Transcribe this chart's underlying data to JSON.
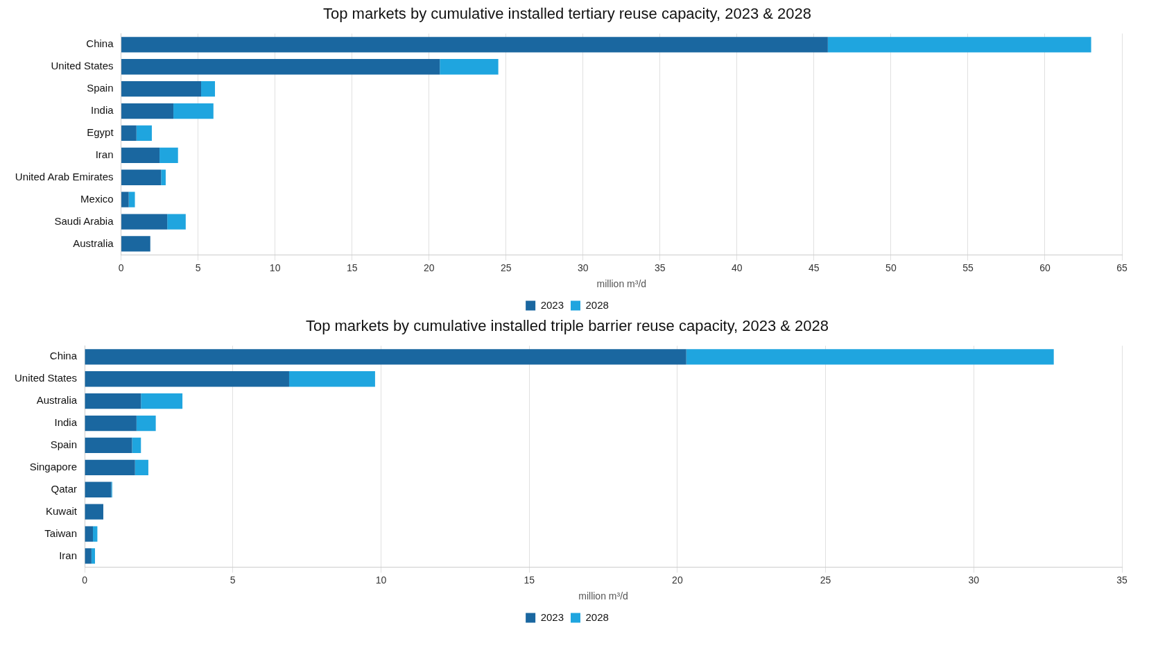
{
  "chart_data": [
    {
      "type": "bar",
      "orientation": "horizontal",
      "stacked": true,
      "title": "Top markets by cumulative installed tertiary reuse capacity, 2023 & 2028",
      "xlabel": "million m³/d",
      "categories": [
        "China",
        "United States",
        "Spain",
        "India",
        "Egypt",
        "Iran",
        "United Arab Emirates",
        "Mexico",
        "Saudi Arabia",
        "Australia"
      ],
      "series": [
        {
          "name": "2023",
          "color": "#1a67a0",
          "values": [
            45.9,
            20.7,
            5.2,
            3.4,
            1.0,
            2.5,
            2.6,
            0.5,
            3.0,
            1.9
          ]
        },
        {
          "name": "2028",
          "color": "#1fa5df",
          "values": [
            17.1,
            3.8,
            0.9,
            2.6,
            1.0,
            1.2,
            0.3,
            0.4,
            1.2,
            0
          ]
        }
      ],
      "xlim": [
        0,
        65
      ],
      "xticks": [
        0,
        5,
        10,
        15,
        20,
        25,
        30,
        35,
        40,
        45,
        50,
        55,
        60,
        65
      ],
      "grid": "x",
      "legend": "bottom"
    },
    {
      "type": "bar",
      "orientation": "horizontal",
      "stacked": true,
      "title": "Top markets by cumulative installed triple barrier reuse capacity, 2023 & 2028",
      "xlabel": "million m³/d",
      "categories": [
        "China",
        "United States",
        "Australia",
        "India",
        "Spain",
        "Singapore",
        "Qatar",
        "Kuwait",
        "Taiwan",
        "Iran"
      ],
      "series": [
        {
          "name": "2023",
          "color": "#1a67a0",
          "values": [
            20.3,
            6.9,
            1.9,
            1.75,
            1.6,
            1.7,
            0.9,
            0.63,
            0.28,
            0.23
          ]
        },
        {
          "name": "2028",
          "color": "#1fa5df",
          "values": [
            12.4,
            2.9,
            1.4,
            0.65,
            0.3,
            0.45,
            0.03,
            0,
            0.15,
            0.12
          ]
        }
      ],
      "xlim": [
        0,
        35
      ],
      "xticks": [
        0,
        5,
        10,
        15,
        20,
        25,
        30,
        35
      ],
      "grid": "x",
      "legend": "bottom"
    }
  ]
}
